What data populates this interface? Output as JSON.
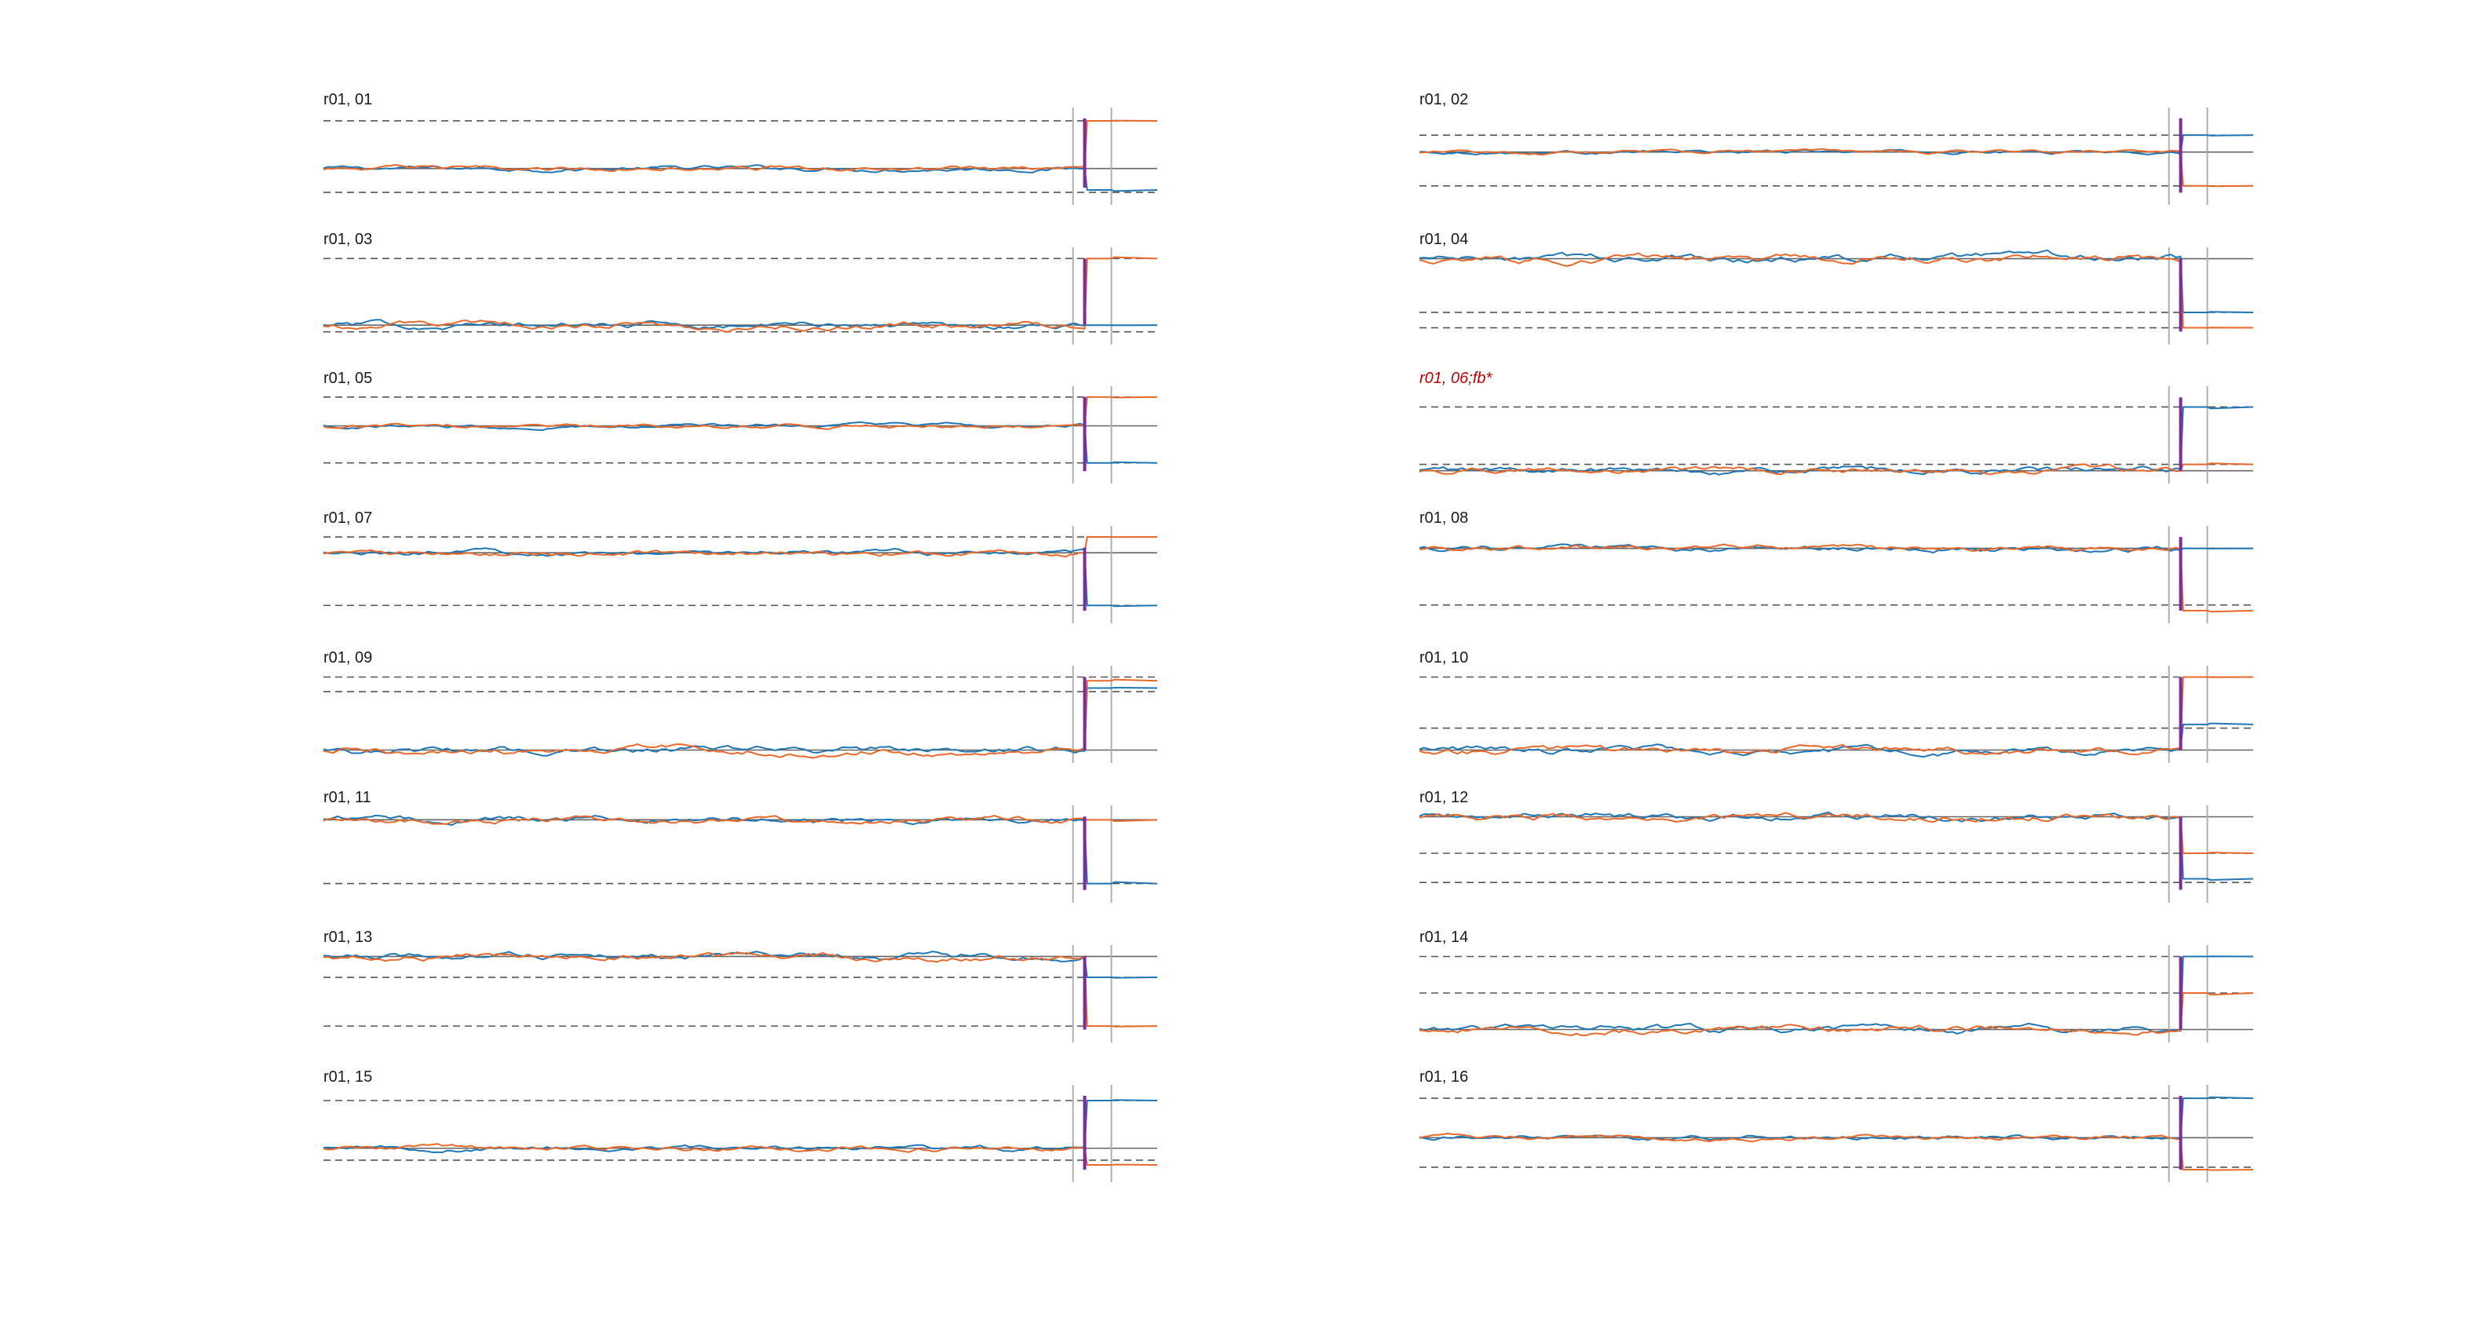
{
  "figure": {
    "colors": {
      "series_a": "#1f77b4",
      "series_b": "#e8692a",
      "step": "#7b2d9a",
      "reference": "#666666",
      "dashed": "#555555",
      "marker": "#b0b0b0",
      "flagged_title": "#c00000"
    }
  },
  "chart_data": [
    {
      "type": "line",
      "title": "r01, 01",
      "flagged": false,
      "baseline": 0,
      "upper": 1.0,
      "lower": -0.5,
      "a_end": -0.45,
      "b_end": 1.0,
      "step_top": 1.05,
      "step_bottom": -0.4
    },
    {
      "type": "line",
      "title": "r01, 02",
      "flagged": false,
      "baseline": 0,
      "upper": 0.5,
      "lower": -1.0,
      "a_end": 0.5,
      "b_end": -1.0,
      "step_top": 1.0,
      "step_bottom": -1.2
    },
    {
      "type": "line",
      "title": "r01, 03",
      "flagged": false,
      "baseline": 0,
      "upper": 1.0,
      "lower": -0.1,
      "a_end": 0.0,
      "b_end": 1.0,
      "step_top": 1.0,
      "step_bottom": 0.0
    },
    {
      "type": "line",
      "title": "r01, 04",
      "flagged": false,
      "baseline": 0,
      "upper": -0.7,
      "lower": -0.9,
      "a_end": -0.7,
      "b_end": -0.9,
      "step_top": 0.0,
      "step_bottom": -0.95
    },
    {
      "type": "line",
      "title": "r01, 05",
      "flagged": false,
      "baseline": 0,
      "upper": 0.7,
      "lower": -0.9,
      "a_end": -0.9,
      "b_end": 0.7,
      "step_top": 0.7,
      "step_bottom": -1.1
    },
    {
      "type": "line",
      "title": "r01, 06;fb*",
      "flagged": true,
      "baseline": 0,
      "upper": 1.0,
      "lower": 0.1,
      "a_end": 1.0,
      "b_end": 0.1,
      "step_top": 1.15,
      "step_bottom": 0.0
    },
    {
      "type": "line",
      "title": "r01, 07",
      "flagged": false,
      "baseline": 0,
      "upper": 0.3,
      "lower": -1.0,
      "a_end": -1.0,
      "b_end": 0.3,
      "step_top": 0.1,
      "step_bottom": -1.1
    },
    {
      "type": "line",
      "title": "r01, 08",
      "flagged": false,
      "baseline": 0,
      "upper": 0.0,
      "lower": -1.0,
      "a_end": 0.0,
      "b_end": -1.1,
      "step_top": 0.2,
      "step_bottom": -1.1
    },
    {
      "type": "line",
      "title": "r01, 09",
      "flagged": false,
      "baseline": 0,
      "upper": 1.0,
      "lower": 0.8,
      "a_end": 0.85,
      "b_end": 0.95,
      "step_top": 1.0,
      "step_bottom": 0.0
    },
    {
      "type": "line",
      "title": "r01, 10",
      "flagged": false,
      "baseline": 0,
      "upper": 1.0,
      "lower": 0.3,
      "a_end": 0.35,
      "b_end": 1.0,
      "step_top": 1.0,
      "step_bottom": 0.0
    },
    {
      "type": "line",
      "title": "r01, 11",
      "flagged": false,
      "baseline": 0,
      "upper": 0.0,
      "lower": -1.0,
      "a_end": -1.0,
      "b_end": 0.0,
      "step_top": 0.05,
      "step_bottom": -1.1
    },
    {
      "type": "line",
      "title": "r01, 12",
      "flagged": false,
      "baseline": 0,
      "upper": -0.5,
      "lower": -0.9,
      "a_end": -0.85,
      "b_end": -0.5,
      "step_top": 0.0,
      "step_bottom": -1.0
    },
    {
      "type": "line",
      "title": "r01, 13",
      "flagged": false,
      "baseline": 0,
      "upper": -0.3,
      "lower": -1.0,
      "a_end": -0.3,
      "b_end": -1.0,
      "step_top": 0.0,
      "step_bottom": -1.05
    },
    {
      "type": "line",
      "title": "r01, 14",
      "flagged": false,
      "baseline": 0,
      "upper": 1.0,
      "lower": 0.5,
      "a_end": 1.0,
      "b_end": 0.5,
      "step_top": 1.0,
      "step_bottom": 0.0
    },
    {
      "type": "line",
      "title": "r01, 15",
      "flagged": false,
      "baseline": 0,
      "upper": 1.0,
      "lower": -0.25,
      "a_end": 1.0,
      "b_end": -0.35,
      "step_top": 1.1,
      "step_bottom": -0.45
    },
    {
      "type": "line",
      "title": "r01, 16",
      "flagged": false,
      "baseline": 0,
      "upper": 0.8,
      "lower": -0.6,
      "a_end": 0.8,
      "b_end": -0.65,
      "step_top": 0.85,
      "step_bottom": -0.65
    }
  ]
}
